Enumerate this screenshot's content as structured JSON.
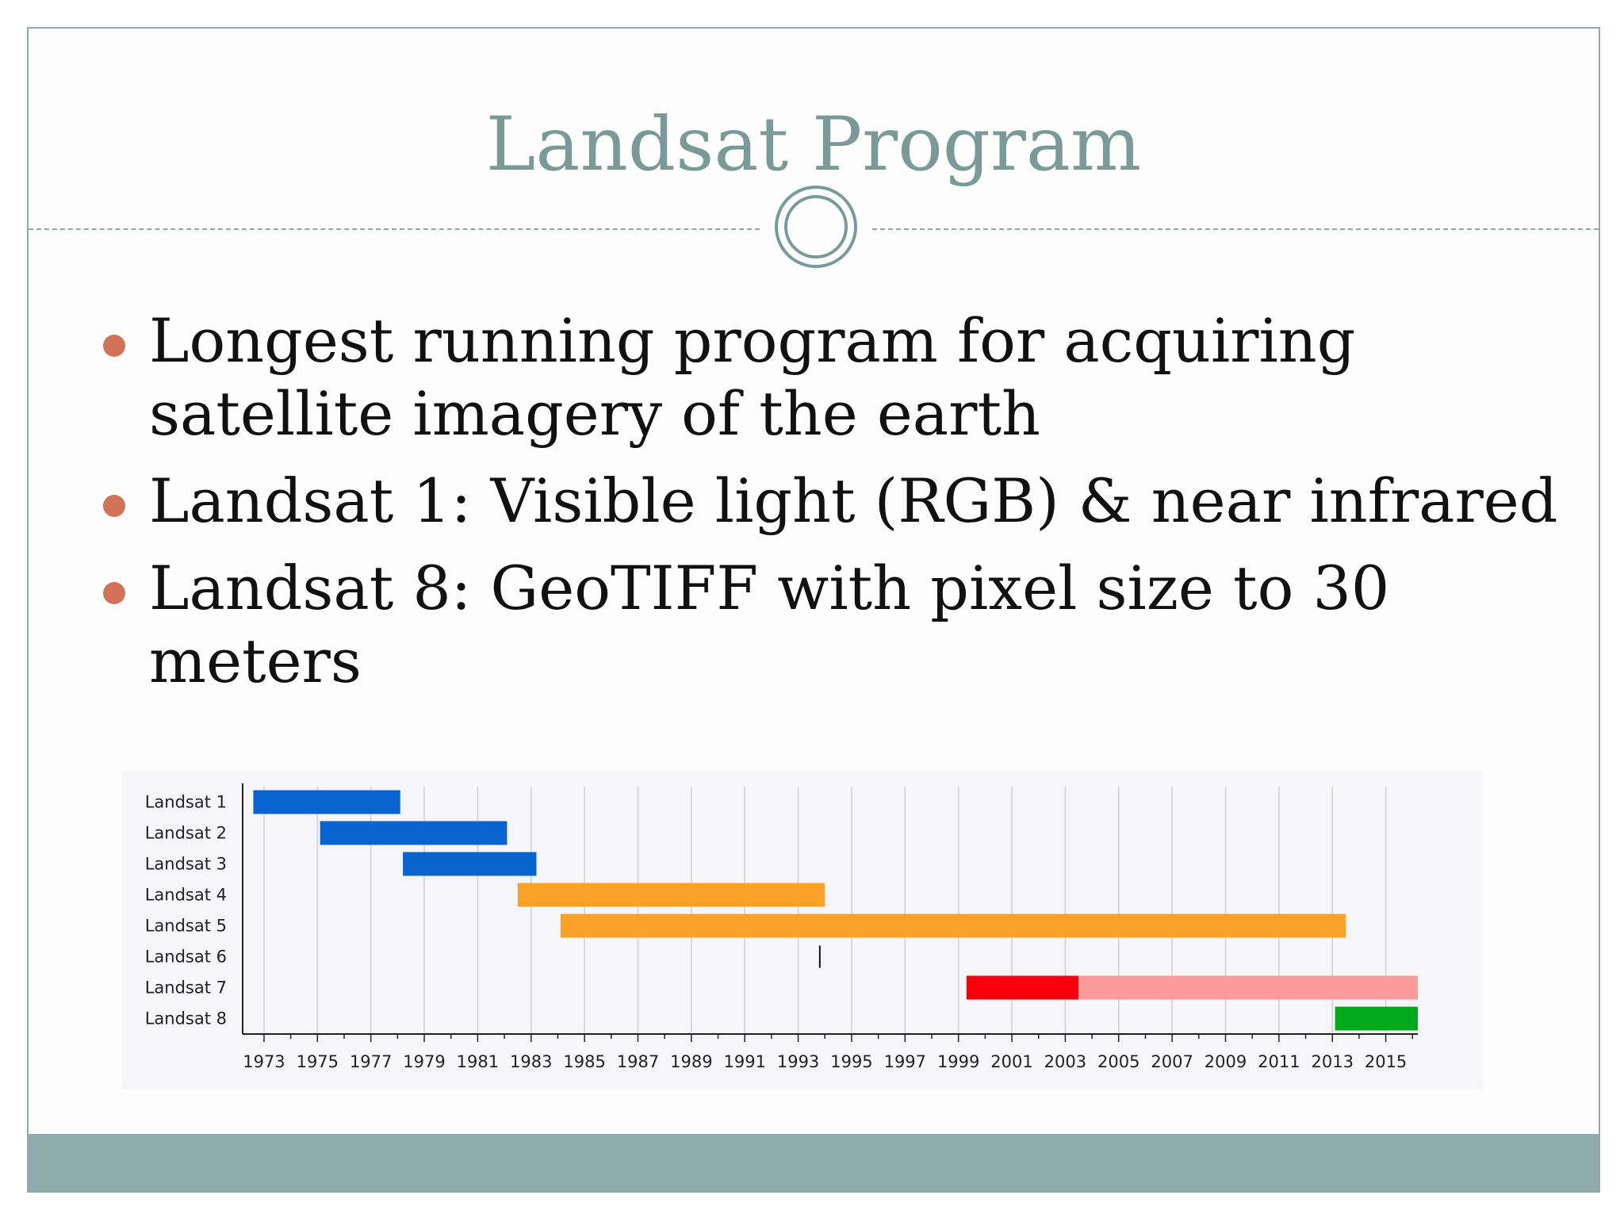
{
  "slide": {
    "title": "Landsat Program",
    "bullets": [
      "Longest running program for acquiring satellite imagery of the earth",
      "Landsat 1: Visible light (RGB) & near infrared",
      "Landsat 8: GeoTIFF with pixel size to 30 meters"
    ]
  },
  "chart_data": {
    "type": "bar",
    "orientation": "horizontal-timeline",
    "title": "",
    "xlabel": "",
    "ylabel": "",
    "xlim": [
      1972.2,
      2016.2
    ],
    "grid": true,
    "x_ticks": [
      "1973",
      "1975",
      "1977",
      "1979",
      "1981",
      "1983",
      "1985",
      "1987",
      "1989",
      "1991",
      "1993",
      "1995",
      "1997",
      "1999",
      "2001",
      "2003",
      "2005",
      "2007",
      "2009",
      "2011",
      "2013",
      "2015"
    ],
    "x_tick_values": [
      1973,
      1975,
      1977,
      1979,
      1981,
      1983,
      1985,
      1987,
      1989,
      1991,
      1993,
      1995,
      1997,
      1999,
      2001,
      2003,
      2005,
      2007,
      2009,
      2011,
      2013,
      2015
    ],
    "categories": [
      "Landsat 1",
      "Landsat 2",
      "Landsat 3",
      "Landsat 4",
      "Landsat 5",
      "Landsat 6",
      "Landsat 7",
      "Landsat 8"
    ],
    "segments": [
      {
        "category": "Landsat 1",
        "start": 1972.6,
        "end": 1978.1,
        "color": "#0a64cf"
      },
      {
        "category": "Landsat 2",
        "start": 1975.1,
        "end": 1982.1,
        "color": "#0a64cf"
      },
      {
        "category": "Landsat 3",
        "start": 1978.2,
        "end": 1983.2,
        "color": "#0a64cf"
      },
      {
        "category": "Landsat 4",
        "start": 1982.5,
        "end": 1994.0,
        "color": "#fca127"
      },
      {
        "category": "Landsat 5",
        "start": 1984.1,
        "end": 2013.5,
        "color": "#fca127"
      },
      {
        "category": "Landsat 6",
        "start": 1993.78,
        "end": 1993.82,
        "color": "#111111"
      },
      {
        "category": "Landsat 7",
        "start": 1999.3,
        "end": 2003.5,
        "color": "#f7000a"
      },
      {
        "category": "Landsat 7",
        "start": 2003.5,
        "end": 2016.2,
        "color": "#fd9b9b"
      },
      {
        "category": "Landsat 8",
        "start": 2013.1,
        "end": 2016.2,
        "color": "#00a91b"
      }
    ]
  }
}
